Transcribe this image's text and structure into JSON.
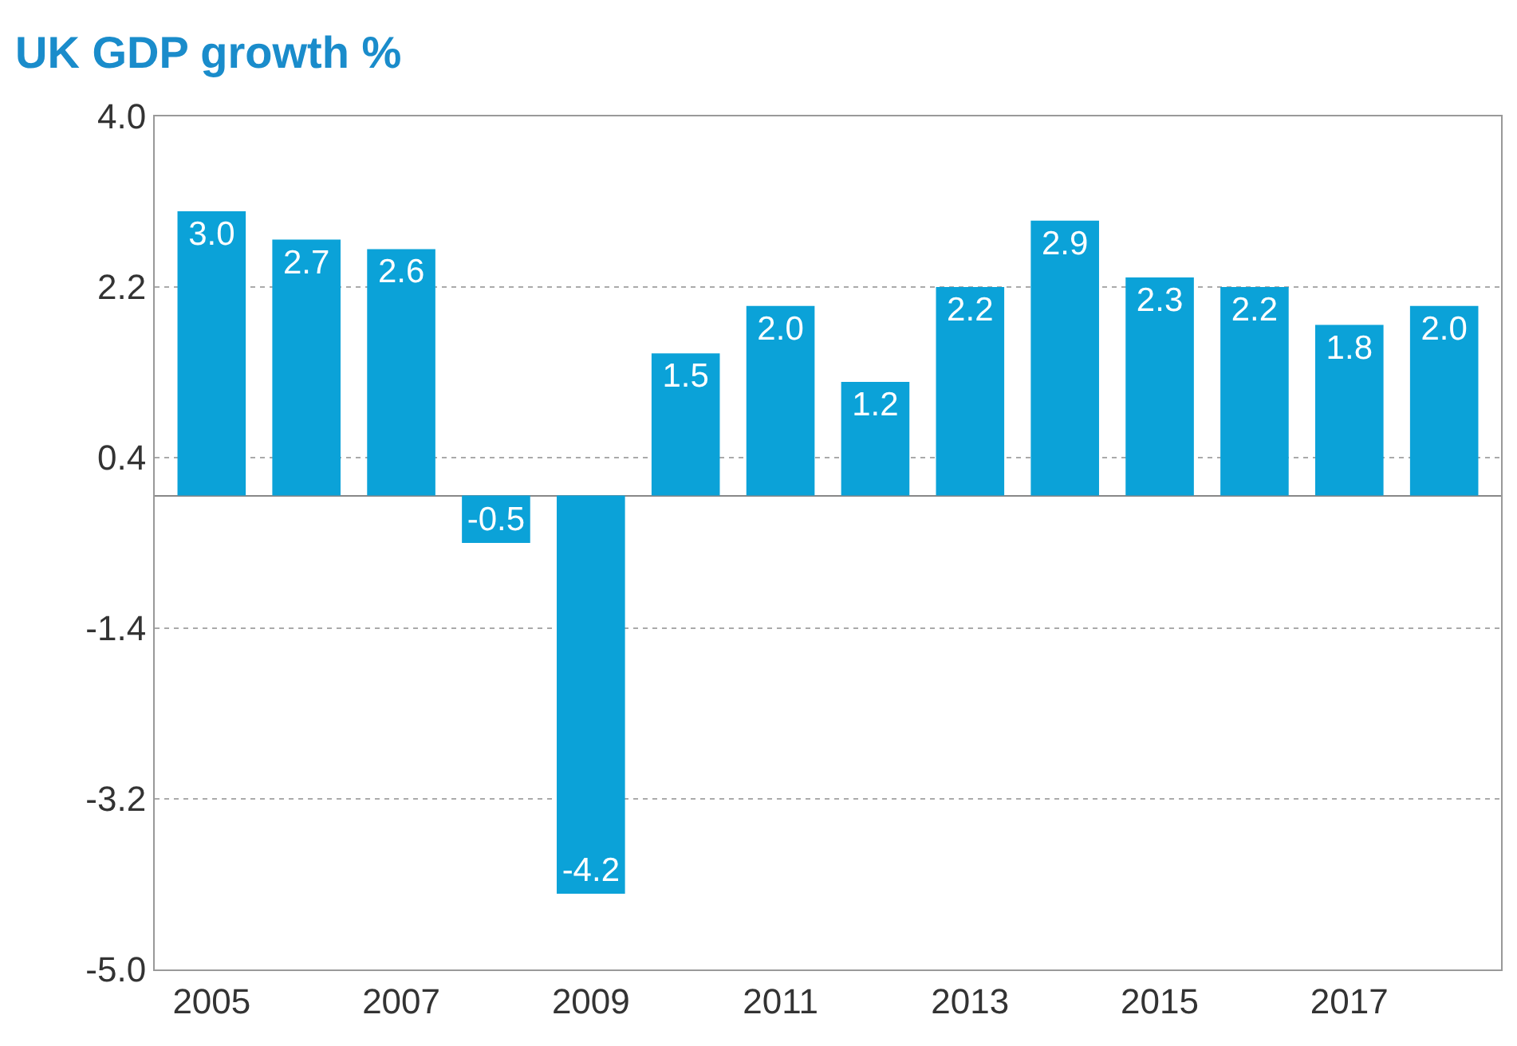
{
  "chart_data": {
    "type": "bar",
    "title": "UK GDP growth %",
    "categories": [
      "2005",
      null,
      "2007",
      null,
      "2009",
      null,
      "2011",
      null,
      "2013",
      null,
      "2015",
      null,
      "2017",
      null
    ],
    "values": [
      3.0,
      2.7,
      2.6,
      -0.5,
      -4.2,
      1.5,
      2.0,
      1.2,
      2.2,
      2.9,
      2.3,
      2.2,
      1.8,
      2.0
    ],
    "value_labels": [
      "3.0",
      "2.7",
      "2.6",
      "-0.5",
      "-4.2",
      "1.5",
      "2.0",
      "1.2",
      "2.2",
      "2.9",
      "2.3",
      "2.2",
      "1.8",
      "2.0"
    ],
    "color": "#0ba2d8",
    "ylim": [
      -5,
      4
    ],
    "yticks": [
      {
        "value": -5,
        "label": "-5.0"
      },
      -3.2,
      -1.4,
      0.4,
      2.2,
      {
        "value": 4,
        "label": "4.0"
      }
    ],
    "grid": "y"
  }
}
